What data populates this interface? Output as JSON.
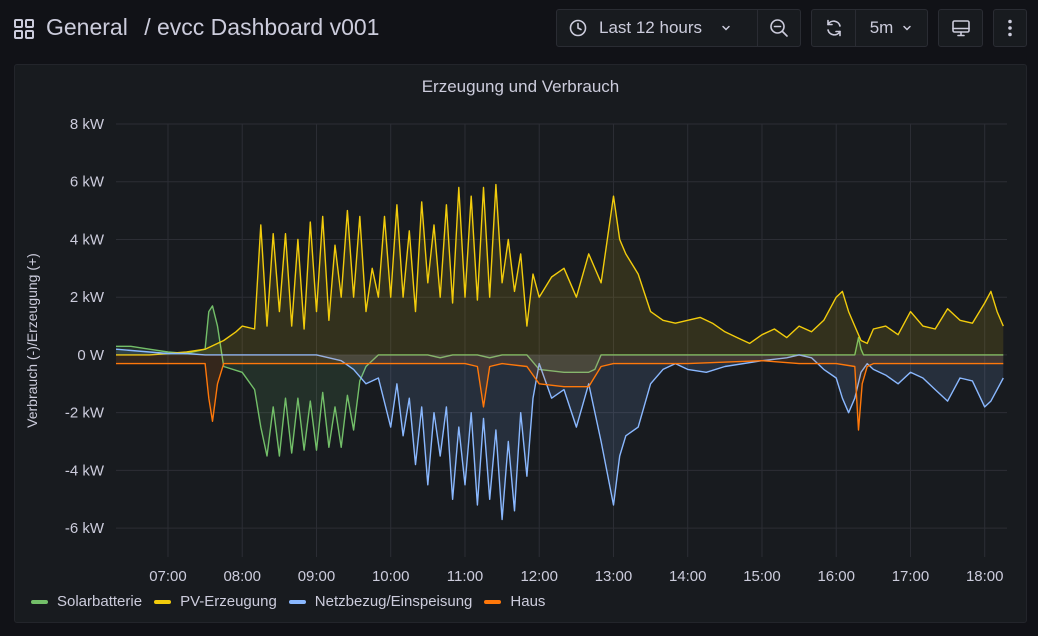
{
  "header": {
    "folder": "General",
    "separator": "/",
    "dashboard_title": "evcc Dashboard v001",
    "time_range_label": "Last 12 hours",
    "refresh_interval": "5m"
  },
  "icons": {
    "apps": "apps-grid-icon",
    "clock": "clock-icon",
    "chevron": "chevron-down-icon",
    "zoom_out": "zoom-out-icon",
    "refresh": "refresh-icon",
    "tv": "tv-mode-icon",
    "more": "more-vertical-icon"
  },
  "panel": {
    "title": "Erzeugung und Verbrauch"
  },
  "colors": {
    "background": "#111217",
    "panel": "#181b1f",
    "grid": "#2c2e35",
    "Solarbatterie": "#73bf69",
    "PV-Erzeugung": "#f2cc0c",
    "Netzbezug/Einspeisung": "#8ab8ff",
    "Haus": "#ff780a"
  },
  "chart_data": {
    "type": "line",
    "title": "Erzeugung und Verbrauch",
    "xlabel": "",
    "ylabel": "Verbrauch (-)/Erzeugung (+)",
    "unit": "kW",
    "ylim": [
      -7,
      8
    ],
    "xlim": [
      "06:18",
      "18:18"
    ],
    "yticks": [
      8,
      6,
      4,
      2,
      0,
      -2,
      -4,
      -6
    ],
    "ytick_labels": [
      "8 kW",
      "6 kW",
      "4 kW",
      "2 kW",
      "0 W",
      "-2 kW",
      "-4 kW",
      "-6 kW"
    ],
    "xticks": [
      "07:00",
      "08:00",
      "09:00",
      "10:00",
      "11:00",
      "12:00",
      "13:00",
      "14:00",
      "15:00",
      "16:00",
      "17:00",
      "18:00"
    ],
    "legend_position": "bottom-left",
    "grid": true,
    "series": [
      {
        "name": "Solarbatterie",
        "x": [
          "06:18",
          "06:30",
          "06:45",
          "07:00",
          "07:15",
          "07:30",
          "07:33",
          "07:36",
          "07:40",
          "07:45",
          "08:00",
          "08:10",
          "08:15",
          "08:20",
          "08:25",
          "08:30",
          "08:35",
          "08:40",
          "08:45",
          "08:50",
          "08:55",
          "09:00",
          "09:05",
          "09:10",
          "09:15",
          "09:20",
          "09:25",
          "09:30",
          "09:35",
          "09:40",
          "09:50",
          "10:00",
          "10:10",
          "10:20",
          "10:30",
          "10:40",
          "10:50",
          "11:00",
          "11:10",
          "11:20",
          "11:30",
          "11:40",
          "11:50",
          "12:00",
          "12:20",
          "12:40",
          "12:45",
          "12:50",
          "13:00",
          "14:00",
          "15:00",
          "15:30",
          "16:00",
          "16:15",
          "16:18",
          "16:20",
          "16:22",
          "16:25",
          "16:30",
          "17:00",
          "17:30",
          "18:00",
          "18:15"
        ],
        "y": [
          0.3,
          0.3,
          0.2,
          0.1,
          0.05,
          0.2,
          1.5,
          1.7,
          1.0,
          -0.4,
          -0.6,
          -1.2,
          -2.5,
          -3.5,
          -1.8,
          -3.5,
          -1.5,
          -3.4,
          -1.5,
          -3.3,
          -1.6,
          -3.3,
          -1.3,
          -3.2,
          -1.8,
          -3.2,
          -1.4,
          -2.6,
          -0.9,
          -0.4,
          0,
          0,
          0,
          0,
          0,
          -0.1,
          0,
          0,
          0,
          -0.1,
          0,
          0,
          0,
          -0.5,
          -0.6,
          -0.6,
          -0.5,
          0,
          0,
          0,
          0,
          0,
          0,
          0,
          0.6,
          0.2,
          0,
          0,
          0,
          0,
          0,
          0,
          0
        ]
      },
      {
        "name": "PV-Erzeugung",
        "x": [
          "06:18",
          "06:45",
          "07:00",
          "07:15",
          "07:30",
          "07:45",
          "07:55",
          "08:00",
          "08:10",
          "08:15",
          "08:20",
          "08:25",
          "08:30",
          "08:35",
          "08:40",
          "08:45",
          "08:50",
          "08:55",
          "09:00",
          "09:05",
          "09:10",
          "09:15",
          "09:20",
          "09:25",
          "09:30",
          "09:35",
          "09:40",
          "09:45",
          "09:50",
          "09:55",
          "10:00",
          "10:05",
          "10:10",
          "10:15",
          "10:20",
          "10:25",
          "10:30",
          "10:35",
          "10:40",
          "10:45",
          "10:50",
          "10:55",
          "11:00",
          "11:05",
          "11:10",
          "11:15",
          "11:20",
          "11:25",
          "11:30",
          "11:35",
          "11:40",
          "11:45",
          "11:50",
          "11:55",
          "12:00",
          "12:10",
          "12:20",
          "12:30",
          "12:40",
          "12:50",
          "13:00",
          "13:05",
          "13:10",
          "13:20",
          "13:30",
          "13:40",
          "13:50",
          "14:00",
          "14:10",
          "14:20",
          "14:30",
          "14:40",
          "14:50",
          "15:00",
          "15:10",
          "15:20",
          "15:30",
          "15:40",
          "15:50",
          "16:00",
          "16:05",
          "16:10",
          "16:15",
          "16:20",
          "16:25",
          "16:30",
          "16:40",
          "16:50",
          "17:00",
          "17:10",
          "17:20",
          "17:30",
          "17:40",
          "17:50",
          "18:00",
          "18:05",
          "18:10",
          "18:15"
        ],
        "y": [
          0,
          0,
          0.05,
          0.1,
          0.2,
          0.5,
          0.8,
          1.0,
          0.9,
          4.5,
          1.0,
          4.2,
          1.5,
          4.2,
          1.0,
          4.0,
          0.9,
          4.6,
          1.5,
          4.8,
          1.2,
          3.8,
          2.0,
          5.0,
          2.0,
          4.8,
          1.5,
          3.0,
          2.0,
          4.8,
          2.0,
          5.2,
          2.0,
          4.3,
          1.5,
          5.3,
          2.5,
          4.5,
          2.0,
          5.2,
          1.8,
          5.8,
          2.0,
          5.5,
          1.9,
          5.8,
          2.0,
          5.9,
          2.5,
          4.0,
          2.2,
          3.5,
          1.0,
          2.8,
          2.0,
          2.7,
          3.0,
          2.0,
          3.5,
          2.5,
          5.5,
          4.0,
          3.5,
          2.8,
          1.5,
          1.2,
          1.1,
          1.2,
          1.3,
          1.1,
          0.8,
          0.6,
          0.4,
          0.7,
          0.9,
          0.6,
          1.0,
          0.8,
          1.2,
          2.0,
          2.2,
          1.5,
          1.0,
          0.5,
          0.4,
          0.9,
          1.0,
          0.7,
          1.5,
          1.0,
          0.9,
          1.6,
          1.2,
          1.1,
          1.8,
          2.2,
          1.5,
          1.0
        ]
      },
      {
        "name": "Netzbezug/Einspeisung",
        "x": [
          "06:18",
          "06:45",
          "07:00",
          "07:15",
          "07:30",
          "07:45",
          "08:00",
          "08:30",
          "09:00",
          "09:10",
          "09:20",
          "09:30",
          "09:40",
          "09:50",
          "10:00",
          "10:05",
          "10:10",
          "10:15",
          "10:20",
          "10:25",
          "10:30",
          "10:35",
          "10:40",
          "10:45",
          "10:50",
          "10:55",
          "11:00",
          "11:05",
          "11:10",
          "11:15",
          "11:20",
          "11:25",
          "11:30",
          "11:35",
          "11:40",
          "11:45",
          "11:50",
          "11:55",
          "12:00",
          "12:10",
          "12:20",
          "12:30",
          "12:40",
          "12:50",
          "13:00",
          "13:05",
          "13:10",
          "13:20",
          "13:30",
          "13:40",
          "13:50",
          "14:00",
          "14:15",
          "14:30",
          "15:00",
          "15:20",
          "15:30",
          "15:40",
          "15:50",
          "16:00",
          "16:05",
          "16:10",
          "16:15",
          "16:20",
          "16:25",
          "16:30",
          "16:40",
          "16:50",
          "17:00",
          "17:10",
          "17:20",
          "17:30",
          "17:40",
          "17:50",
          "18:00",
          "18:05",
          "18:10",
          "18:15"
        ],
        "y": [
          0.2,
          0.1,
          0.05,
          0.05,
          0,
          0,
          0,
          0,
          0,
          -0.1,
          -0.2,
          -0.5,
          -1.0,
          -0.8,
          -2.5,
          -1.0,
          -2.8,
          -1.5,
          -3.8,
          -1.8,
          -4.5,
          -2.0,
          -3.5,
          -1.8,
          -5.0,
          -2.5,
          -4.5,
          -2.0,
          -5.2,
          -2.2,
          -5.0,
          -2.6,
          -5.7,
          -3.0,
          -5.4,
          -2.0,
          -4.2,
          -1.5,
          -0.3,
          -1.5,
          -1.2,
          -2.5,
          -1.0,
          -3.0,
          -5.2,
          -3.5,
          -2.8,
          -2.5,
          -1.0,
          -0.5,
          -0.3,
          -0.5,
          -0.6,
          -0.4,
          -0.2,
          -0.1,
          0,
          -0.1,
          -0.5,
          -0.8,
          -1.5,
          -2.0,
          -1.5,
          -0.6,
          -0.3,
          -0.5,
          -0.7,
          -1.0,
          -0.6,
          -0.8,
          -1.2,
          -1.6,
          -0.8,
          -0.9,
          -1.8,
          -1.6,
          -1.2,
          -0.8
        ]
      },
      {
        "name": "Haus",
        "x": [
          "06:18",
          "07:00",
          "07:30",
          "07:33",
          "07:36",
          "07:40",
          "07:45",
          "08:00",
          "09:00",
          "10:00",
          "10:30",
          "11:00",
          "11:10",
          "11:15",
          "11:20",
          "11:30",
          "11:50",
          "12:00",
          "12:20",
          "12:40",
          "12:50",
          "13:00",
          "14:00",
          "15:00",
          "15:30",
          "16:00",
          "16:15",
          "16:18",
          "16:21",
          "16:25",
          "16:30",
          "17:00",
          "18:00",
          "18:15"
        ],
        "y": [
          -0.3,
          -0.3,
          -0.3,
          -1.5,
          -2.3,
          -1.0,
          -0.3,
          -0.3,
          -0.3,
          -0.3,
          -0.3,
          -0.3,
          -0.4,
          -1.8,
          -0.4,
          -0.3,
          -0.4,
          -1.0,
          -1.1,
          -1.1,
          -0.4,
          -0.3,
          -0.3,
          -0.2,
          -0.3,
          -0.3,
          -0.4,
          -2.6,
          -1.0,
          -0.4,
          -0.3,
          -0.3,
          -0.3,
          -0.3
        ]
      }
    ]
  }
}
